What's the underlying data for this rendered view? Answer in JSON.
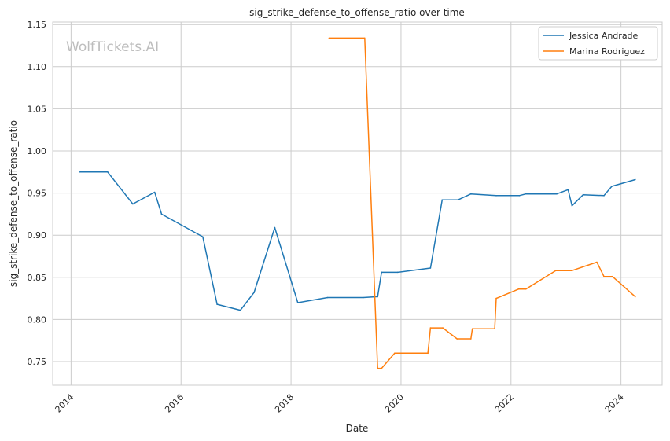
{
  "chart_data": {
    "type": "line",
    "title": "sig_strike_defense_to_offense_ratio over time",
    "xlabel": "Date",
    "ylabel": "sig_strike_defense_to_offense_ratio",
    "watermark": "WolfTickets.AI",
    "xlim": [
      "2013-09-01",
      "2024-10-01"
    ],
    "ylim": [
      0.722,
      1.153
    ],
    "x_ticks": [
      "2014",
      "2016",
      "2018",
      "2020",
      "2022",
      "2024"
    ],
    "y_ticks": [
      "0.75",
      "0.80",
      "0.85",
      "0.90",
      "0.95",
      "1.00",
      "1.05",
      "1.10",
      "1.15"
    ],
    "grid": true,
    "legend_position": "top-right",
    "series": [
      {
        "name": "Jessica Andrade",
        "color": "#1f77b4",
        "x": [
          "2014-03-01",
          "2014-09-01",
          "2015-02-15",
          "2015-07-10",
          "2015-08-25",
          "2016-05-25",
          "2016-08-28",
          "2017-01-30",
          "2017-05-01",
          "2017-09-15",
          "2018-02-15",
          "2018-09-01",
          "2019-04-25",
          "2019-07-30",
          "2019-08-25",
          "2019-12-10",
          "2020-07-15",
          "2020-10-01",
          "2021-01-15",
          "2021-04-10",
          "2021-09-25",
          "2022-02-25",
          "2022-04-10",
          "2022-11-01",
          "2023-01-15",
          "2023-02-10",
          "2023-04-25",
          "2023-09-10",
          "2023-11-01",
          "2024-04-05"
        ],
        "values": [
          0.975,
          0.975,
          0.937,
          0.951,
          0.925,
          0.898,
          0.818,
          0.811,
          0.832,
          0.909,
          0.82,
          0.826,
          0.826,
          0.827,
          0.856,
          0.856,
          0.861,
          0.942,
          0.942,
          0.949,
          0.947,
          0.947,
          0.949,
          0.949,
          0.954,
          0.935,
          0.948,
          0.947,
          0.958,
          0.966
        ]
      },
      {
        "name": "Marina Rodriguez",
        "color": "#ff7f0e",
        "x": [
          "2018-09-10",
          "2019-05-05",
          "2019-07-30",
          "2019-08-25",
          "2019-11-20",
          "2020-06-28",
          "2020-07-15",
          "2020-10-05",
          "2021-01-08",
          "2021-04-10",
          "2021-04-20",
          "2021-09-15",
          "2021-09-25",
          "2022-02-20",
          "2022-04-10",
          "2022-10-25",
          "2023-02-10",
          "2023-07-25",
          "2023-09-10",
          "2023-11-05",
          "2024-04-05"
        ],
        "values": [
          1.134,
          1.134,
          0.742,
          0.742,
          0.76,
          0.76,
          0.79,
          0.79,
          0.777,
          0.777,
          0.789,
          0.789,
          0.825,
          0.836,
          0.836,
          0.858,
          0.858,
          0.868,
          0.851,
          0.851,
          0.827
        ]
      }
    ]
  }
}
